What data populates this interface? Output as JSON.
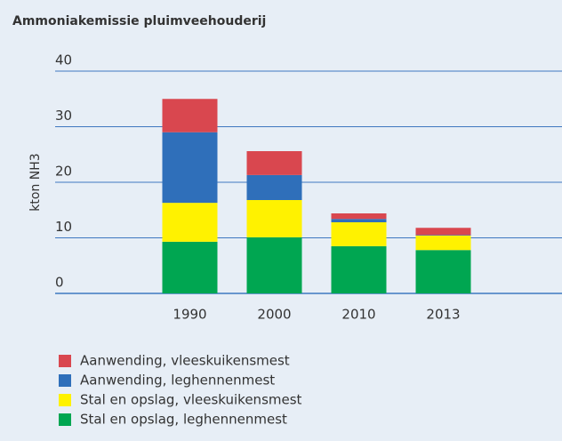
{
  "chart_data": {
    "type": "stacked_bar",
    "title": "Ammoniakemissie pluimveehouderij",
    "ylabel": "kton NH3",
    "categories": [
      "1990",
      "2000",
      "2010",
      "2013"
    ],
    "series": [
      {
        "name": "Stal en opslag, leghennenmest",
        "color": "#00a651",
        "values": [
          9.3,
          10.1,
          8.5,
          7.8
        ]
      },
      {
        "name": "Stal en opslag, vleeskuikensmest",
        "color": "#fff200",
        "values": [
          7.0,
          6.7,
          4.3,
          2.6
        ]
      },
      {
        "name": "Aanwending, leghennenmest",
        "color": "#2f6fba",
        "values": [
          12.7,
          4.5,
          0.6,
          0.1
        ]
      },
      {
        "name": "Aanwending, vleeskuikensmest",
        "color": "#d9474f",
        "values": [
          6.0,
          4.3,
          1.0,
          1.3
        ]
      }
    ],
    "ylim": [
      0,
      40
    ],
    "yticks": [
      0,
      10,
      20,
      30,
      40
    ],
    "grid": true
  }
}
